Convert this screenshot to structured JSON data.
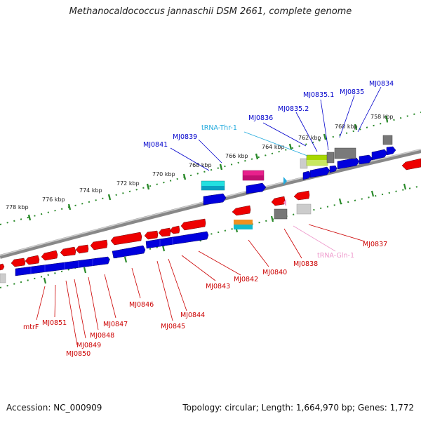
{
  "title": "Methanocaldococcus jannaschii DSM 2661, complete genome",
  "accession": "Accession: NC_000909",
  "topology": "Topology: circular; Length: 1,664,970 bp; Genes: 1,772",
  "colors": {
    "forward": "#0000dd",
    "reverse": "#ee0000",
    "trna_thr": "#33bbdd",
    "trna_gln": "#ee99cc",
    "backbone": "#888888",
    "ticks": "#228822"
  },
  "scale_labels": [
    "778 kbp",
    "776 kbp",
    "774 kbp",
    "772 kbp",
    "770 kbp",
    "768 kbp",
    "766 kbp",
    "764 kbp",
    "762 kbp",
    "760 kbp",
    "758 kbp"
  ],
  "top_labels": [
    "MJ0841",
    "MJ0839",
    "tRNA-Thr-1",
    "MJ0836",
    "MJ0835.2",
    "MJ0835.1",
    "MJ0835",
    "MJ0834"
  ],
  "bottom_labels": [
    "mtrF",
    "MJ0851",
    "MJ0850",
    "MJ0849",
    "MJ0848",
    "MJ0847",
    "MJ0846",
    "MJ0845",
    "MJ0844",
    "MJ0843",
    "MJ0842",
    "MJ0840",
    "MJ0838",
    "tRNA-Gln-1",
    "MJ0837"
  ]
}
